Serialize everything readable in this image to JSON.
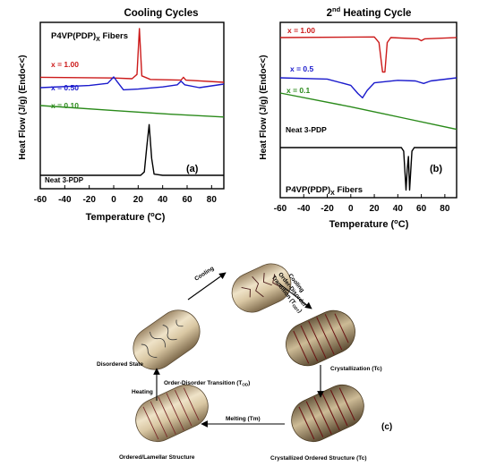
{
  "chart_data": [
    {
      "type": "line",
      "panel_label": "(a)",
      "title": "Cooling Cycles",
      "xlabel": "Temperature (°C)",
      "ylabel": "Heat Flow (J/g) (Endo<<)",
      "annotation_main": "P4VP(PDP)",
      "annotation_sub": "X",
      "annotation_tail": " Fibers",
      "xlim": [
        -60,
        90
      ],
      "xticks": [
        "-60",
        "-40",
        "-20",
        "0",
        "20",
        "40",
        "60",
        "80"
      ],
      "grid": false,
      "series": [
        {
          "name": "x = 1.00",
          "color": "#cc1a1a",
          "points": [
            [
              -60,
              -0.8
            ],
            [
              0,
              -0.9
            ],
            [
              15,
              -1.0
            ],
            [
              19,
              -0.4
            ],
            [
              21,
              6.0
            ],
            [
              23,
              -0.6
            ],
            [
              30,
              -1.1
            ],
            [
              55,
              -1.2
            ],
            [
              57,
              -0.8
            ],
            [
              59,
              -1.2
            ],
            [
              90,
              -1.5
            ]
          ]
        },
        {
          "name": "x = 0.50",
          "color": "#1a1acc",
          "points": [
            [
              -60,
              0
            ],
            [
              -20,
              0.3
            ],
            [
              -5,
              0.6
            ],
            [
              0,
              1.5
            ],
            [
              3,
              0.8
            ],
            [
              8,
              -0.3
            ],
            [
              20,
              -0.2
            ],
            [
              40,
              0.1
            ],
            [
              52,
              0.4
            ],
            [
              55,
              0.9
            ],
            [
              58,
              0.4
            ],
            [
              70,
              0
            ],
            [
              90,
              0.5
            ]
          ]
        },
        {
          "name": "x = 0.10",
          "color": "#2a8a1a",
          "points": [
            [
              -60,
              0
            ],
            [
              0,
              -0.7
            ],
            [
              45,
              -1.2
            ],
            [
              90,
              -1.6
            ]
          ]
        },
        {
          "name": "Neat 3-PDP",
          "color": "#000000",
          "points": [
            [
              -60,
              0
            ],
            [
              22,
              0
            ],
            [
              25,
              0.6
            ],
            [
              27,
              5.0
            ],
            [
              29,
              9.0
            ],
            [
              31,
              3.0
            ],
            [
              33,
              0.2
            ],
            [
              40,
              0
            ],
            [
              90,
              0
            ]
          ]
        }
      ]
    },
    {
      "type": "line",
      "panel_label": "(b)",
      "title_num": "2",
      "title_sup": "nd",
      "title_rest": " Heating Cycle",
      "xlabel": "Temperature (°C)",
      "ylabel": "Heat Flow (J/g) (Endo<<)",
      "annotation_main": "P4VP(PDP)",
      "annotation_sub": "X",
      "annotation_tail": " Fibers",
      "xlim": [
        -60,
        90
      ],
      "xticks": [
        "-60",
        "-40",
        "-20",
        "0",
        "20",
        "40",
        "60",
        "80"
      ],
      "grid": false,
      "series": [
        {
          "name": "x = 1.00",
          "color": "#cc1a1a",
          "points": [
            [
              -60,
              0
            ],
            [
              20,
              0.1
            ],
            [
              24,
              -0.8
            ],
            [
              27,
              -5.5
            ],
            [
              29,
              -5.5
            ],
            [
              31,
              -0.8
            ],
            [
              34,
              0
            ],
            [
              57,
              -0.2
            ],
            [
              60,
              -0.5
            ],
            [
              63,
              -0.2
            ],
            [
              90,
              0
            ]
          ]
        },
        {
          "name": "x = 0.5",
          "color": "#1a1acc",
          "points": [
            [
              -60,
              0
            ],
            [
              -20,
              -0.2
            ],
            [
              0,
              -1.2
            ],
            [
              6,
              -2.5
            ],
            [
              10,
              -3.2
            ],
            [
              14,
              -2.0
            ],
            [
              20,
              -0.8
            ],
            [
              40,
              -0.4
            ],
            [
              55,
              -0.5
            ],
            [
              62,
              -0.9
            ],
            [
              68,
              -0.5
            ],
            [
              90,
              0
            ]
          ]
        },
        {
          "name": "x = 0.1",
          "color": "#2a8a1a",
          "points": [
            [
              -60,
              0
            ],
            [
              0,
              -2.2
            ],
            [
              45,
              -4.0
            ],
            [
              90,
              -5.8
            ]
          ]
        },
        {
          "name": "Neat 3-PDP",
          "color": "#000000",
          "points": [
            [
              -60,
              0
            ],
            [
              43,
              0
            ],
            [
              45,
              -0.8
            ],
            [
              47,
              -9.5
            ],
            [
              48,
              -5.0
            ],
            [
              49,
              -2.0
            ],
            [
              50,
              -9.5
            ],
            [
              52,
              -0.8
            ],
            [
              54,
              0
            ],
            [
              90,
              0
            ]
          ]
        }
      ]
    }
  ],
  "diagram": {
    "panel_label": "(c)",
    "states": {
      "disordered": "Disordered State",
      "lamellar": "Ordered/Lamellar Structure",
      "crystallized_main": "Crystallized Ordered Structure (Tc)"
    },
    "arrows": {
      "cooling": "Cooling",
      "cooling_odt_1": "Cooling",
      "cooling_odt_2": "Order-Disorder",
      "cooling_odt_3": "Transition (T",
      "cooling_odt_sub": "ODT",
      "cooling_odt_end": ")",
      "crystallization": "Crystallization (Tc)",
      "melting": "Melting (Tm)",
      "heating": "Heating",
      "odt_main": "Order-Disorder Transition (T",
      "odt_sub": "OD",
      "odt_end": ")"
    }
  }
}
